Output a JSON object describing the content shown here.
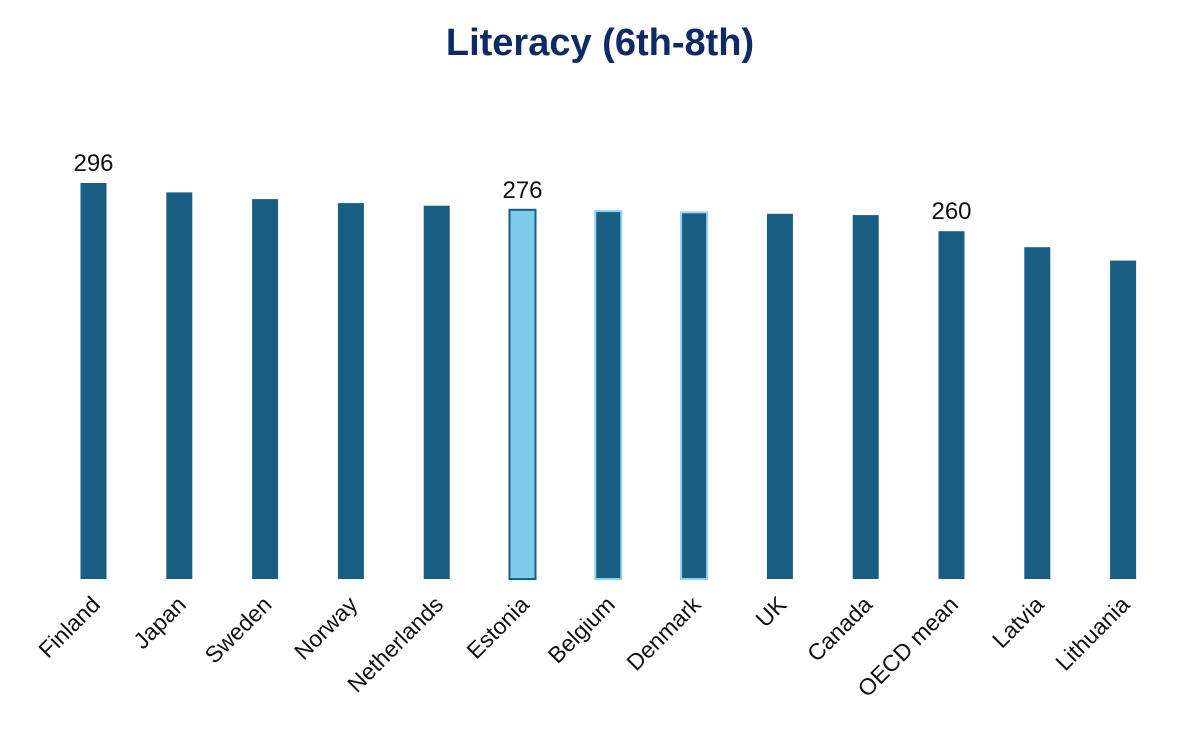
{
  "title": "Literacy (6th-8th)",
  "colors": {
    "bar": "#175e82",
    "highlight_fill": "#7ecbec",
    "highlight_stroke": "#175e82",
    "outline_light": "#8ed2ef",
    "title": "#0e2a66"
  },
  "chart_data": {
    "type": "bar",
    "title": "Literacy (6th-8th)",
    "xlabel": "",
    "ylabel": "",
    "categories": [
      "Finland",
      "Japan",
      "Sweden",
      "Norway",
      "Netherlands",
      "Estonia",
      "Belgium",
      "Denmark",
      "UK",
      "Canada",
      "OECD mean",
      "Latvia",
      "Lithuania"
    ],
    "values": [
      296,
      289,
      284,
      281,
      279,
      276,
      275,
      274,
      273,
      272,
      260,
      248,
      238
    ],
    "data_labels": [
      "296",
      "",
      "",
      "",
      "",
      "276",
      "",
      "",
      "",
      "",
      "260",
      "",
      ""
    ],
    "highlight": [
      "Estonia"
    ],
    "light_outline": [
      "Belgium",
      "Denmark"
    ],
    "ylim": [
      0,
      296
    ],
    "grid": false,
    "legend": "none"
  }
}
